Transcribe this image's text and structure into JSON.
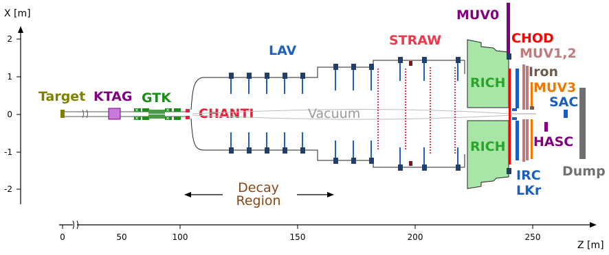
{
  "axes": {
    "x_label": "Z [m]",
    "y_label": "X [m]",
    "x_ticks": [
      "0",
      "50",
      "100",
      "150",
      "200",
      "250"
    ],
    "y_ticks": [
      "2",
      "1",
      "0",
      "-1",
      "-2"
    ]
  },
  "labels": {
    "target": "Target",
    "ktag": "KTAG",
    "gtk": "GTK",
    "chanti": "CHANTI",
    "lav": "LAV",
    "vacuum": "Vacuum",
    "straw": "STRAW",
    "rich_top": "RICH",
    "rich_bottom": "RICH",
    "muv0": "MUV0",
    "chod": "CHOD",
    "muv12": "MUV1,2",
    "iron": "Iron",
    "muv3": "MUV3",
    "sac": "SAC",
    "hasc": "HASC",
    "irc": "IRC",
    "lkr": "LKr",
    "dump": "Dump",
    "decay_region_1": "Decay",
    "decay_region_2": "Region"
  },
  "colors": {
    "target": "#808000",
    "ktag": "#800080",
    "gtk": "#1a8c1a",
    "chanti": "#e8203a",
    "lav": "#1f5fbf",
    "vacuum": "#999999",
    "straw": "#e83a4a",
    "rich_fill": "#a8e6a8",
    "rich_text": "#2aa52a",
    "muv0": "#800080",
    "chod": "#ff0000",
    "muv12": "#c07a7a",
    "iron": "#705a4a",
    "muv3": "#f07800",
    "sac": "#1a5fbf",
    "hasc": "#800080",
    "irc": "#1a5fbf",
    "lkr": "#1a5fbf",
    "dump": "#707070",
    "decay": "#8b4513",
    "module": "#1f3f6f"
  }
}
